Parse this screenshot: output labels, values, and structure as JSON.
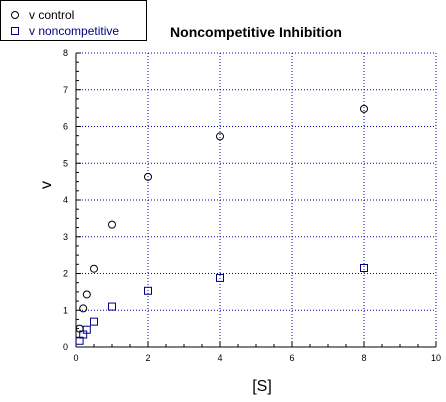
{
  "chart_data": {
    "type": "scatter",
    "title": "Noncompetitive Inhibition",
    "xlabel": "[S]",
    "ylabel": "v",
    "xlim": [
      0,
      10
    ],
    "ylim": [
      0,
      8
    ],
    "xticks": [
      0,
      2,
      4,
      6,
      8,
      10
    ],
    "yticks": [
      0,
      1,
      2,
      3,
      4,
      5,
      6,
      7,
      8
    ],
    "grid": true,
    "legend_position": "top-left",
    "series": [
      {
        "name": "v control",
        "marker": "circle",
        "color": "#000000",
        "x": [
          0.1,
          0.2,
          0.3,
          0.5,
          1,
          2,
          4,
          8
        ],
        "y": [
          0.5,
          1.05,
          1.43,
          2.13,
          3.33,
          4.63,
          5.73,
          6.48
        ]
      },
      {
        "name": "v noncompetitive",
        "marker": "square",
        "color": "#000080",
        "x": [
          0.1,
          0.2,
          0.3,
          0.5,
          1,
          2,
          4,
          8
        ],
        "y": [
          0.17,
          0.34,
          0.47,
          0.69,
          1.1,
          1.53,
          1.88,
          2.15
        ]
      }
    ],
    "colors": {
      "grid": "#0000aa",
      "axis": "#000000",
      "legend_text_2": "#000080"
    }
  }
}
